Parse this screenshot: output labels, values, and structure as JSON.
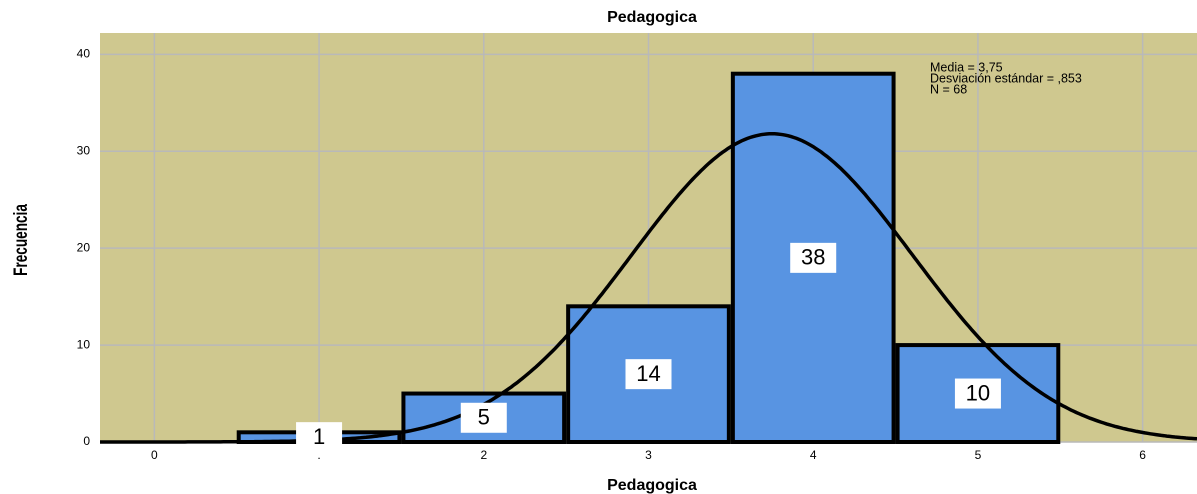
{
  "chart_data": {
    "type": "histogram",
    "title": "Pedagogica",
    "x_label": "Pedagogica",
    "y_label": "Frecuencia",
    "bins": [
      0.5,
      1.5,
      2.5,
      3.5,
      4.5,
      5.5
    ],
    "values": [
      1,
      5,
      14,
      38,
      10
    ],
    "color": "#5894e2",
    "background": "#cfc88f",
    "xlim": [
      -0.33,
      6.33
    ],
    "xticks": [
      0,
      {
        "value": 1,
        "label": "."
      },
      2,
      3,
      4,
      5,
      6
    ],
    "ylim": [
      0,
      42.2
    ],
    "yticks": [
      0,
      10,
      20,
      30,
      40
    ],
    "grid": true,
    "normal_curve": {
      "mean": {
        "value": 3.75,
        "label": "Media = 3,75"
      },
      "sd": {
        "value": 0.853,
        "label": "Desviación estándar = ,853"
      },
      "n": {
        "value": 68,
        "label": "N = 68"
      }
    }
  }
}
